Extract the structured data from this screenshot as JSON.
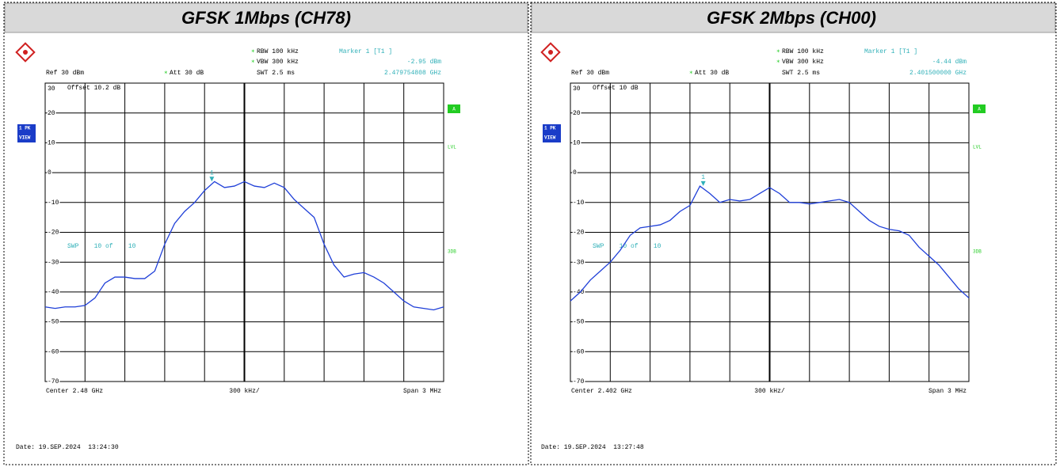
{
  "chart_data": [
    {
      "type": "line",
      "title": "GFSK 1Mbps (CH78)",
      "x": [
        2478.5,
        2478.575,
        2478.65,
        2478.725,
        2478.8,
        2478.875,
        2478.95,
        2479.025,
        2479.1,
        2479.175,
        2479.25,
        2479.325,
        2479.4,
        2479.475,
        2479.55,
        2479.625,
        2479.7,
        2479.775,
        2479.85,
        2479.925,
        2480,
        2480.075,
        2480.15,
        2480.225,
        2480.3,
        2480.375,
        2480.45,
        2480.525,
        2480.6,
        2480.675,
        2480.75,
        2480.825,
        2480.9,
        2480.975,
        2481.05,
        2481.125,
        2481.2,
        2481.275,
        2481.35,
        2481.425,
        2481.5
      ],
      "series": [
        {
          "color": "#1f3fd8",
          "values": [
            -45,
            -45.5,
            -45,
            -45,
            -44.5,
            -42,
            -37,
            -35,
            -35,
            -35.5,
            -35.5,
            -33,
            -24,
            -17,
            -13,
            -10,
            -6,
            -3,
            -5,
            -4.5,
            -3,
            -4.5,
            -5,
            -3.5,
            -5,
            -9,
            -12,
            -15,
            -24,
            -31,
            -35,
            -34,
            -33.5,
            -35,
            -37,
            -40,
            -43,
            -45,
            -45.5,
            -46,
            -45
          ]
        }
      ],
      "xlim": [
        2478.5,
        2481.5
      ],
      "ylim": [
        -70,
        30
      ],
      "yticks": [
        30,
        20,
        10,
        0,
        -10,
        -20,
        -30,
        -40,
        -50,
        -60,
        -70
      ],
      "grid": true,
      "marker": {
        "name": "Marker 1 [T1 ]",
        "label": "1",
        "x": 2479.754808,
        "value": -2.95,
        "value_label": "-2.95 dBm",
        "x_label": "2.479754808 GHz"
      },
      "rbw": "RBW 100 kHz",
      "vbw": "VBW 300 kHz",
      "ref": "Ref 30 dBm",
      "att": "Att 30 dB",
      "swt": "SWT 2.5 ms",
      "offset": "Offset 10.2 dB",
      "trace_mode": [
        "1 PK",
        "VIEW"
      ],
      "side_labels": [
        "A",
        "LVL",
        "3DB"
      ],
      "sweep": "SWP    10 of    10",
      "center": "Center 2.48 GHz",
      "per_div": "300 kHz/",
      "span": "Span 3 MHz",
      "date": "Date: 19.SEP.2024  13:24:30"
    },
    {
      "type": "line",
      "title": "GFSK 2Mbps (CH00)",
      "x": [
        2400.5,
        2400.575,
        2400.65,
        2400.725,
        2400.8,
        2400.875,
        2400.95,
        2401.025,
        2401.1,
        2401.175,
        2401.25,
        2401.325,
        2401.4,
        2401.475,
        2401.55,
        2401.625,
        2401.7,
        2401.775,
        2401.85,
        2401.925,
        2402,
        2402.075,
        2402.15,
        2402.225,
        2402.3,
        2402.375,
        2402.45,
        2402.525,
        2402.6,
        2402.675,
        2402.75,
        2402.825,
        2402.9,
        2402.975,
        2403.05,
        2403.125,
        2403.2,
        2403.275,
        2403.35,
        2403.425,
        2403.5
      ],
      "series": [
        {
          "color": "#1f3fd8",
          "values": [
            -43,
            -40,
            -36,
            -33,
            -30,
            -26,
            -21,
            -18.5,
            -18,
            -17.5,
            -16,
            -13,
            -11,
            -4.5,
            -7,
            -10,
            -9,
            -9.5,
            -9,
            -7,
            -5,
            -7,
            -10,
            -10,
            -10.5,
            -10,
            -9.5,
            -9,
            -10,
            -13,
            -16,
            -18,
            -19,
            -19.5,
            -21,
            -25,
            -28,
            -31,
            -35,
            -39,
            -42
          ]
        }
      ],
      "xlim": [
        2400.5,
        2403.5
      ],
      "ylim": [
        -70,
        30
      ],
      "yticks": [
        30,
        20,
        10,
        0,
        -10,
        -20,
        -30,
        -40,
        -50,
        -60,
        -70
      ],
      "grid": true,
      "marker": {
        "name": "Marker 1 [T1 ]",
        "label": "1",
        "x": 2401.5,
        "value": -4.44,
        "value_label": "-4.44 dBm",
        "x_label": "2.401500000 GHz"
      },
      "rbw": "RBW 100 kHz",
      "vbw": "VBW 300 kHz",
      "ref": "Ref 30 dBm",
      "att": "Att 30 dB",
      "swt": "SWT 2.5 ms",
      "offset": "Offset 10 dB",
      "trace_mode": [
        "1 PK",
        "VIEW"
      ],
      "side_labels": [
        "A",
        "LVL",
        "3DB"
      ],
      "sweep": "SWP    10 of    10",
      "center": "Center 2.402 GHz",
      "per_div": "300 kHz/",
      "span": "Span 3 MHz",
      "date": "Date: 19.SEP.2024  13:27:48"
    }
  ]
}
